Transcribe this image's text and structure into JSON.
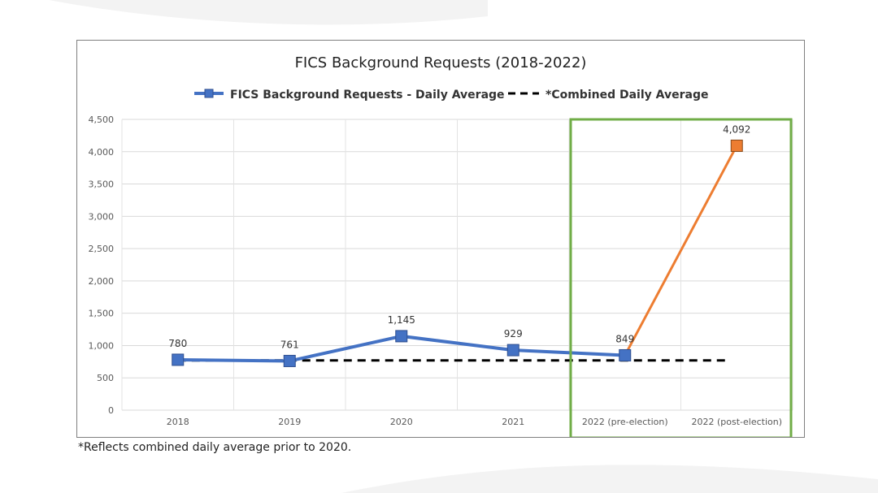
{
  "chart_data": {
    "type": "line",
    "title": "FICS Background Requests (2018-2022)",
    "xlabel": "",
    "ylabel": "",
    "categories": [
      "2018",
      "2019",
      "2020",
      "2021",
      "2022 (pre-election)",
      "2022 (post-election)"
    ],
    "ylim": [
      0,
      4500
    ],
    "yticks": [
      0,
      500,
      1000,
      1500,
      2000,
      2500,
      3000,
      3500,
      4000,
      4500
    ],
    "ytick_labels": [
      "0",
      "500",
      "1,000",
      "1,500",
      "2,000",
      "2,500",
      "3,000",
      "3,500",
      "4,000",
      "4,500"
    ],
    "grid": true,
    "legend_position": "top",
    "series": [
      {
        "name": "FICS Background Requests - Daily Average",
        "values": [
          780,
          761,
          1145,
          929,
          849,
          4092
        ],
        "data_labels": [
          "780",
          "761",
          "1,145",
          "929",
          "849",
          "4,092"
        ],
        "color": "#4472c4",
        "highlight_last_color": "#ed7d31"
      },
      {
        "name": "*Combined Daily Average",
        "values": [
          770,
          770,
          770,
          770,
          770,
          770
        ],
        "style": "dashed",
        "color": "#000000"
      }
    ],
    "highlight_box": {
      "categories": [
        "2022 (pre-election)",
        "2022 (post-election)"
      ],
      "color": "#70ad47"
    }
  },
  "footnote": "*Reflects combined daily average prior to 2020."
}
